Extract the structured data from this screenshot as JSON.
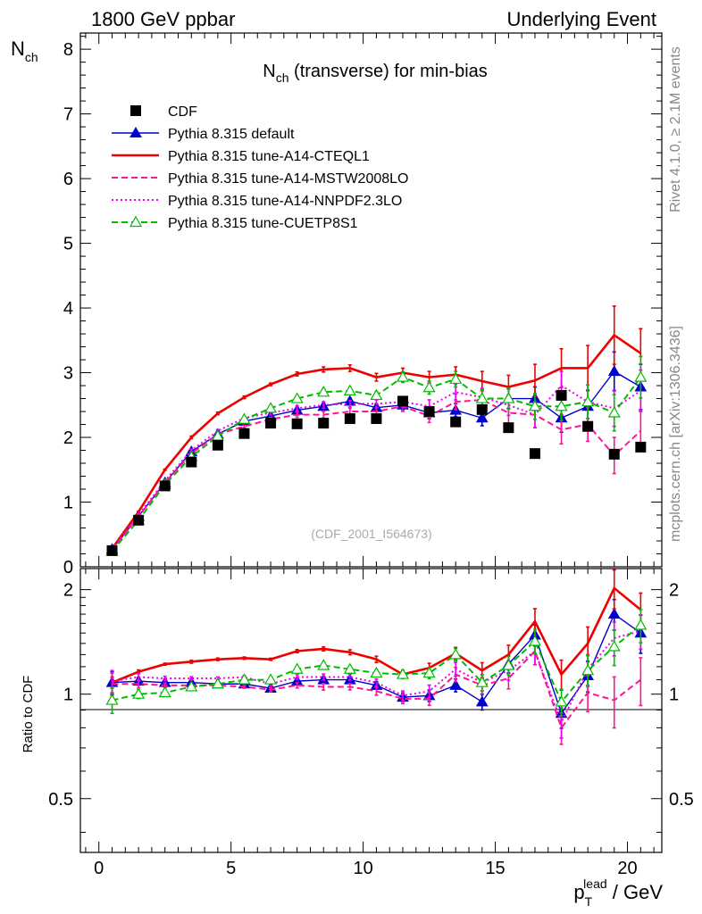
{
  "header": {
    "left": "1800 GeV ppbar",
    "right": "Underlying Event"
  },
  "side": {
    "rivet": "Rivet 4.1.0, ≥ 2.1M events",
    "mcplots": "mcplots.cern.ch [arXiv:1306.3436]"
  },
  "chart_data": {
    "type": "line",
    "title_main": "N",
    "title_sub": "ch",
    "title_rest": " (transverse) for min-bias",
    "ylabel_main": "N",
    "ylabel_sub": "ch",
    "ratio_ylabel": "Ratio to CDF",
    "xlabel_p": "p",
    "xlabel_sub": "T",
    "xlabel_sup": "lead",
    "xlabel_rest": " / GeV",
    "watermark": "(CDF_2001_I564673)",
    "xlim": [
      -0.7,
      21.3
    ],
    "ylim": [
      0,
      8.25
    ],
    "ratio_ylim": [
      0.35,
      2.3
    ],
    "x_ticks": [
      0,
      5,
      10,
      15,
      20
    ],
    "x_tick_labels": [
      "0",
      "5",
      "10",
      "15",
      "20"
    ],
    "y_ticks": [
      0,
      1,
      2,
      3,
      4,
      5,
      6,
      7,
      8
    ],
    "y_tick_labels": [
      "0",
      "1",
      "2",
      "3",
      "4",
      "5",
      "6",
      "7",
      "8"
    ],
    "ratio_ticks": [
      0.5,
      1,
      2
    ],
    "ratio_tick_labels": [
      "0.5",
      "1",
      "2"
    ],
    "x": [
      0.5,
      1.5,
      2.5,
      3.5,
      4.5,
      5.5,
      6.5,
      7.5,
      8.5,
      9.5,
      10.5,
      11.5,
      12.5,
      13.5,
      14.5,
      15.5,
      16.5,
      17.5,
      18.5,
      19.5,
      20.5
    ],
    "cdf": {
      "name": "CDF",
      "values": [
        0.25,
        0.72,
        1.25,
        1.62,
        1.88,
        2.06,
        2.22,
        2.21,
        2.22,
        2.29,
        2.29,
        2.56,
        2.4,
        2.24,
        2.43,
        2.15,
        1.75,
        2.65,
        2.17,
        1.74,
        1.85
      ]
    },
    "series": [
      {
        "name": "Pythia 8.315 default",
        "color": "#0000cc",
        "style": "solid",
        "marker": "triangle",
        "values": [
          0.27,
          0.78,
          1.3,
          1.78,
          2.05,
          2.25,
          2.33,
          2.42,
          2.48,
          2.56,
          2.46,
          2.5,
          2.38,
          2.42,
          2.3,
          2.6,
          2.6,
          2.3,
          2.48,
          3.02,
          2.78
        ],
        "errors": [
          0.02,
          0.02,
          0.02,
          0.02,
          0.02,
          0.02,
          0.03,
          0.03,
          0.04,
          0.05,
          0.06,
          0.07,
          0.09,
          0.1,
          0.12,
          0.15,
          0.18,
          0.22,
          0.25,
          0.3,
          0.35
        ],
        "ratio": [
          1.08,
          1.09,
          1.08,
          1.08,
          1.07,
          1.07,
          1.04,
          1.09,
          1.1,
          1.1,
          1.06,
          0.98,
          0.99,
          1.06,
          0.95,
          1.22,
          1.48,
          0.88,
          1.13,
          1.7,
          1.5
        ]
      },
      {
        "name": "Pythia 8.315 tune-A14-CTEQL1",
        "color": "#ee0000",
        "style": "solid",
        "marker": "none",
        "values": [
          0.28,
          0.85,
          1.5,
          2.0,
          2.37,
          2.62,
          2.82,
          2.98,
          3.05,
          3.07,
          2.93,
          3.0,
          2.93,
          2.97,
          2.87,
          2.78,
          2.88,
          3.07,
          3.07,
          3.58,
          3.3
        ],
        "errors": [
          0.01,
          0.01,
          0.01,
          0.02,
          0.02,
          0.02,
          0.02,
          0.03,
          0.04,
          0.05,
          0.06,
          0.07,
          0.09,
          0.12,
          0.15,
          0.18,
          0.25,
          0.3,
          0.35,
          0.45,
          0.38
        ],
        "ratio": [
          1.08,
          1.16,
          1.22,
          1.24,
          1.26,
          1.27,
          1.26,
          1.33,
          1.35,
          1.32,
          1.26,
          1.14,
          1.19,
          1.31,
          1.17,
          1.3,
          1.62,
          1.14,
          1.4,
          2.02,
          1.75
        ]
      },
      {
        "name": "Pythia 8.315 tune-A14-MSTW2008LO",
        "color": "#ff1493",
        "style": "dashed",
        "marker": "none",
        "values": [
          0.26,
          0.78,
          1.3,
          1.75,
          2.05,
          2.17,
          2.28,
          2.35,
          2.35,
          2.4,
          2.4,
          2.48,
          2.33,
          2.55,
          2.58,
          2.38,
          2.35,
          2.12,
          2.2,
          1.72,
          2.1
        ],
        "errors": [
          0.02,
          0.02,
          0.02,
          0.02,
          0.02,
          0.02,
          0.03,
          0.04,
          0.05,
          0.05,
          0.06,
          0.08,
          0.1,
          0.12,
          0.14,
          0.16,
          0.2,
          0.22,
          0.26,
          0.28,
          0.32
        ],
        "ratio": [
          1.07,
          1.07,
          1.06,
          1.06,
          1.06,
          1.05,
          1.03,
          1.06,
          1.05,
          1.05,
          1.02,
          0.97,
          0.97,
          1.14,
          1.06,
          1.11,
          1.33,
          0.8,
          1.01,
          0.96,
          1.1
        ]
      },
      {
        "name": "Pythia 8.315 tune-A14-NNPDF2.3LO",
        "color": "#ee00ee",
        "style": "dotted",
        "marker": "none",
        "values": [
          0.28,
          0.8,
          1.33,
          1.8,
          2.1,
          2.3,
          2.38,
          2.45,
          2.5,
          2.52,
          2.52,
          2.55,
          2.48,
          2.7,
          2.62,
          2.5,
          2.35,
          2.8,
          2.55,
          2.45,
          2.72
        ],
        "errors": [
          0.02,
          0.02,
          0.02,
          0.02,
          0.02,
          0.02,
          0.03,
          0.04,
          0.05,
          0.05,
          0.06,
          0.08,
          0.1,
          0.12,
          0.14,
          0.16,
          0.2,
          0.22,
          0.26,
          0.28,
          0.32
        ],
        "ratio": [
          1.09,
          1.12,
          1.11,
          1.11,
          1.11,
          1.12,
          1.07,
          1.12,
          1.12,
          1.12,
          1.08,
          0.99,
          1.02,
          1.18,
          1.08,
          1.17,
          1.33,
          0.83,
          1.18,
          1.45,
          1.52
        ]
      },
      {
        "name": "Pythia 8.315 tune-CUETP8S1",
        "color": "#00bb00",
        "style": "dashed",
        "marker": "open-triangle",
        "values": [
          0.24,
          0.72,
          1.27,
          1.7,
          2.02,
          2.28,
          2.45,
          2.6,
          2.7,
          2.72,
          2.65,
          2.93,
          2.77,
          2.9,
          2.6,
          2.6,
          2.48,
          2.48,
          2.55,
          2.38,
          2.93
        ],
        "errors": [
          0.02,
          0.02,
          0.02,
          0.02,
          0.02,
          0.02,
          0.03,
          0.04,
          0.05,
          0.05,
          0.06,
          0.08,
          0.1,
          0.12,
          0.14,
          0.16,
          0.2,
          0.22,
          0.26,
          0.28,
          0.32
        ],
        "ratio": [
          0.96,
          1.0,
          1.01,
          1.05,
          1.07,
          1.1,
          1.1,
          1.18,
          1.21,
          1.18,
          1.15,
          1.14,
          1.15,
          1.3,
          1.08,
          1.21,
          1.42,
          0.95,
          1.17,
          1.37,
          1.58
        ]
      }
    ]
  }
}
